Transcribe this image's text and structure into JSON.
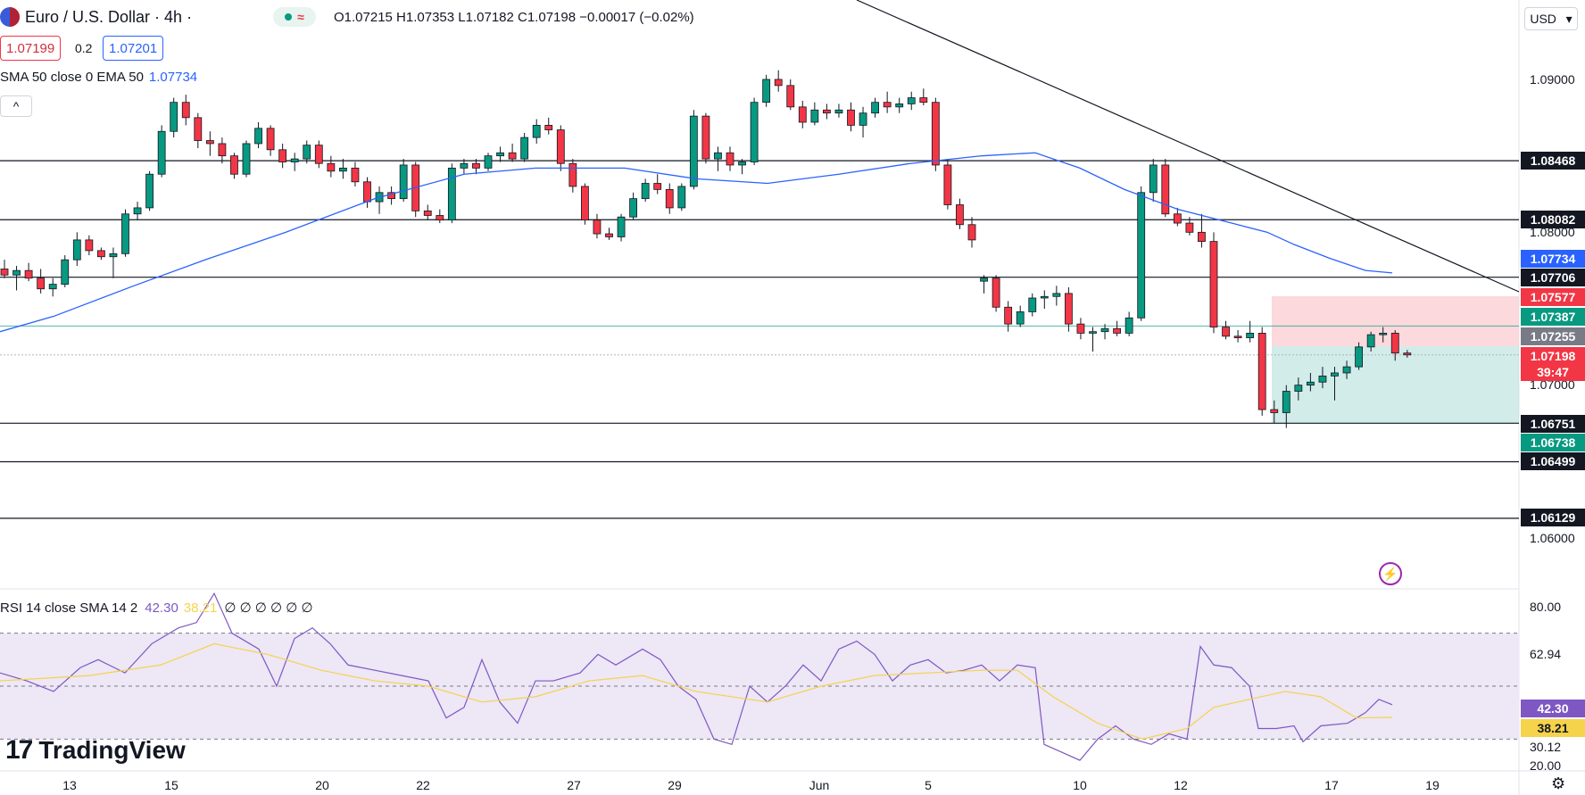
{
  "header": {
    "symbol_title": "Euro / U.S. Dollar · 4h ·",
    "market_status_symbol": "≈",
    "ohlc": "O1.07215  H1.07353  L1.07182  C1.07198  −0.00017 (−0.02%)",
    "bid": "1.07199",
    "spread": "0.2",
    "ask": "1.07201",
    "indicator_legend": "SMA 50 close 0 EMA 50",
    "indicator_value": "1.07734",
    "collapse_symbol": "^",
    "currency": "USD",
    "currency_caret": "▾"
  },
  "rsi_legend": {
    "label": "RSI 14 close SMA 14 2",
    "rsi_value": "42.30",
    "sma_value": "38.21",
    "extra": "∅ ∅ ∅ ∅ ∅ ∅"
  },
  "branding": {
    "logo_mark": "17",
    "name": "TradingView"
  },
  "price_axis": {
    "labels": [
      "1.09000",
      "1.08000",
      "1.07000",
      "1.06000"
    ],
    "tags": [
      {
        "text": "1.08468",
        "bg": "#131722",
        "fg": "#ffffff"
      },
      {
        "text": "1.08082",
        "bg": "#131722",
        "fg": "#ffffff"
      },
      {
        "text": "1.07734",
        "bg": "#2962ff",
        "fg": "#ffffff"
      },
      {
        "text": "1.07706",
        "bg": "#131722",
        "fg": "#ffffff"
      },
      {
        "text": "1.07577",
        "bg": "#f23645",
        "fg": "#ffffff"
      },
      {
        "text": "1.07387",
        "bg": "#089981",
        "fg": "#ffffff"
      },
      {
        "text": "1.07255",
        "bg": "#787b86",
        "fg": "#ffffff"
      },
      {
        "text": "1.07198",
        "bg": "#f23645",
        "fg": "#ffffff"
      },
      {
        "text": "39:47",
        "bg": "#f23645",
        "fg": "#ffffff"
      },
      {
        "text": "1.06751",
        "bg": "#131722",
        "fg": "#ffffff"
      },
      {
        "text": "1.06738",
        "bg": "#089981",
        "fg": "#ffffff"
      },
      {
        "text": "1.06499",
        "bg": "#131722",
        "fg": "#ffffff"
      },
      {
        "text": "1.06129",
        "bg": "#131722",
        "fg": "#ffffff"
      }
    ]
  },
  "rsi_axis": {
    "labels": [
      "80.00",
      "62.94",
      "30.12",
      "20.00"
    ],
    "tags": [
      {
        "text": "42.30",
        "bg": "#7e57c2",
        "fg": "#ffffff"
      },
      {
        "text": "38.21",
        "bg": "#f5d34a",
        "fg": "#131722"
      }
    ]
  },
  "time_axis": [
    "13",
    "15",
    "20",
    "22",
    "27",
    "29",
    "Jun",
    "5",
    "10",
    "12",
    "17",
    "19"
  ],
  "icons": {
    "gear": "⚙",
    "bolt": "⚡"
  },
  "colors": {
    "up": "#089981",
    "down": "#f23645",
    "ema": "#2962ff",
    "rsi": "#7e57c2",
    "rsi_sma": "#f5d34a",
    "rsi_band": "#ede7f6",
    "profit_zone": "#b2dfdb",
    "loss_zone": "#fbd0d3"
  }
}
